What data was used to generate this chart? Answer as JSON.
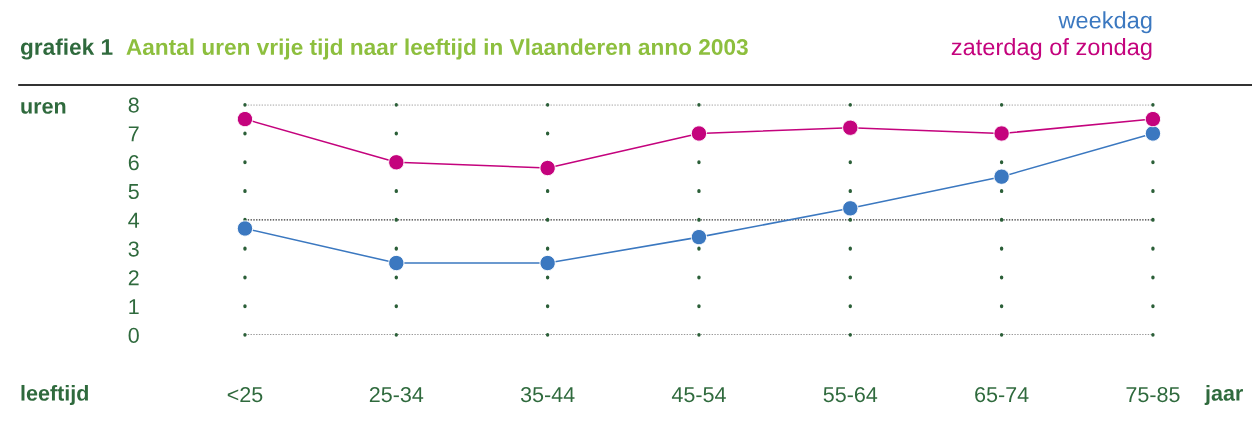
{
  "chart_data": {
    "type": "line",
    "title": "grafiek 1",
    "subtitle": "Aantal uren vrije tijd naar leeftijd in Vlaanderen anno 2003",
    "xlabel": "leeftijd",
    "ylabel": "uren",
    "annotations": [
      "jaar"
    ],
    "categories": [
      "<25",
      "25-34",
      "35-44",
      "45-54",
      "55-64",
      "65-74",
      "75-85"
    ],
    "series": [
      {
        "name": "weekdag",
        "color": "#3b78c0",
        "values": [
          3.7,
          2.5,
          2.5,
          3.4,
          4.4,
          5.5,
          7.0
        ]
      },
      {
        "name": "zaterdag of zondag",
        "color": "#c4037d",
        "values": [
          7.5,
          6.0,
          5.8,
          7.0,
          7.2,
          7.0,
          7.5
        ]
      }
    ],
    "ylim": [
      0,
      8
    ],
    "yticks": [
      0,
      1,
      2,
      3,
      4,
      5,
      6,
      7,
      8
    ],
    "grid": "x",
    "ref_lines": [
      {
        "axis": "y",
        "value": 0,
        "color": "#333333",
        "line_style": "dotted"
      },
      {
        "axis": "y",
        "value": 4,
        "color": "#333333",
        "line_style": "dotted"
      },
      {
        "axis": "y",
        "value": 8,
        "color": "#333333",
        "line_style": "dotted"
      }
    ],
    "legend": "top right",
    "marker": "circle",
    "line_style": "solid"
  }
}
